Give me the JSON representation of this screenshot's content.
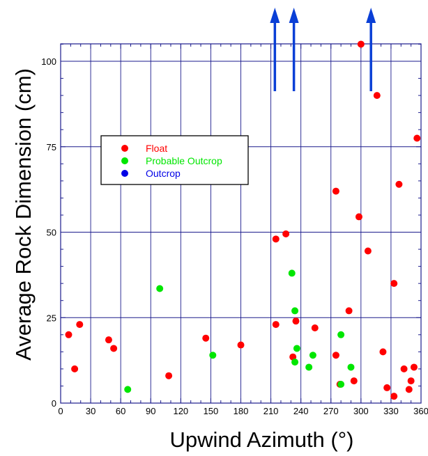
{
  "chart_data": {
    "type": "scatter",
    "title": "",
    "xlabel": "Upwind Azimuth (°)",
    "ylabel": "Average Rock Dimension (cm)",
    "xlim": [
      0,
      360
    ],
    "ylim": [
      0,
      105
    ],
    "x_ticks": [
      0,
      30,
      60,
      90,
      120,
      150,
      180,
      210,
      240,
      270,
      300,
      330,
      360
    ],
    "y_ticks": [
      0,
      25,
      50,
      75,
      100
    ],
    "grid": true,
    "legend_position": "upper-left",
    "series": [
      {
        "name": "Float",
        "color": "#ff0000",
        "points": [
          {
            "x": 8,
            "y": 20
          },
          {
            "x": 14,
            "y": 10
          },
          {
            "x": 19,
            "y": 23
          },
          {
            "x": 48,
            "y": 18.5
          },
          {
            "x": 53,
            "y": 16
          },
          {
            "x": 108,
            "y": 8
          },
          {
            "x": 145,
            "y": 19
          },
          {
            "x": 180,
            "y": 17
          },
          {
            "x": 215,
            "y": 48
          },
          {
            "x": 215,
            "y": 23
          },
          {
            "x": 225,
            "y": 49.5
          },
          {
            "x": 232,
            "y": 13.5
          },
          {
            "x": 235,
            "y": 24
          },
          {
            "x": 254,
            "y": 22
          },
          {
            "x": 275,
            "y": 62
          },
          {
            "x": 275,
            "y": 14
          },
          {
            "x": 279,
            "y": 5.5
          },
          {
            "x": 288,
            "y": 27
          },
          {
            "x": 293,
            "y": 6.5
          },
          {
            "x": 298,
            "y": 54.5
          },
          {
            "x": 300,
            "y": 105
          },
          {
            "x": 307,
            "y": 44.5
          },
          {
            "x": 316,
            "y": 90
          },
          {
            "x": 322,
            "y": 15
          },
          {
            "x": 326,
            "y": 4.5
          },
          {
            "x": 333,
            "y": 2
          },
          {
            "x": 333,
            "y": 35
          },
          {
            "x": 338,
            "y": 64
          },
          {
            "x": 343,
            "y": 10
          },
          {
            "x": 348,
            "y": 4
          },
          {
            "x": 350,
            "y": 6.5
          },
          {
            "x": 353,
            "y": 10.5
          },
          {
            "x": 356,
            "y": 77.5
          }
        ]
      },
      {
        "name": "Probable Outcrop",
        "color": "#00e600",
        "points": [
          {
            "x": 67,
            "y": 4
          },
          {
            "x": 99,
            "y": 33.5
          },
          {
            "x": 152,
            "y": 14
          },
          {
            "x": 231,
            "y": 38
          },
          {
            "x": 234,
            "y": 27
          },
          {
            "x": 234,
            "y": 12
          },
          {
            "x": 236,
            "y": 16
          },
          {
            "x": 248,
            "y": 10.5
          },
          {
            "x": 252,
            "y": 14
          },
          {
            "x": 280,
            "y": 20
          },
          {
            "x": 280,
            "y": 5.5
          },
          {
            "x": 290,
            "y": 10.5
          }
        ]
      },
      {
        "name": "Outcrop",
        "color": "#0000e6",
        "points": []
      }
    ],
    "offscale_arrows": {
      "color": "#0a3fd6",
      "x": [
        214,
        233,
        310
      ]
    },
    "frame_color": "#1a1a8c"
  }
}
